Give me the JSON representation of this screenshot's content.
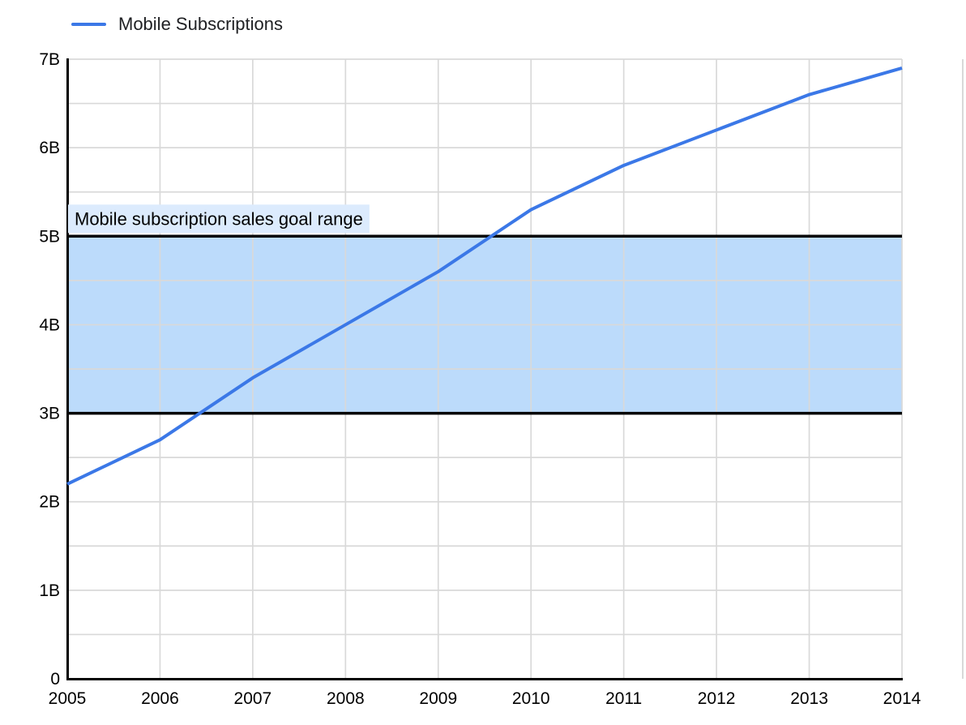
{
  "legend": {
    "label": "Mobile Subscriptions"
  },
  "colors": {
    "line": "#3b78e7",
    "band_fill": "#bcdbfb",
    "band_label_bg": "#dcebfd",
    "band_border": "#000000",
    "grid": "#d9d9d9",
    "axis": "#000000",
    "text": "#000000"
  },
  "chart_data": {
    "type": "line",
    "title": "",
    "x": [
      2005,
      2006,
      2007,
      2008,
      2009,
      2010,
      2011,
      2012,
      2013,
      2014
    ],
    "xtick_labels": [
      "2005",
      "2006",
      "2007",
      "2008",
      "2009",
      "2010",
      "2011",
      "2012",
      "2013",
      "2014"
    ],
    "series": [
      {
        "name": "Mobile Subscriptions",
        "values": [
          2.2,
          2.7,
          3.4,
          4.0,
          4.6,
          5.3,
          5.8,
          6.2,
          6.6,
          6.9
        ]
      }
    ],
    "ylim": [
      0,
      7
    ],
    "yticks": [
      0,
      1,
      2,
      3,
      4,
      5,
      6,
      7
    ],
    "ytick_labels": [
      "0",
      "1B",
      "2B",
      "3B",
      "4B",
      "5B",
      "6B",
      "7B"
    ],
    "minor_grid_step": 0.5,
    "grid": true,
    "legend_position": "top-left",
    "annotation_band": {
      "from": 3,
      "to": 5,
      "label": "Mobile subscription sales goal range"
    }
  }
}
